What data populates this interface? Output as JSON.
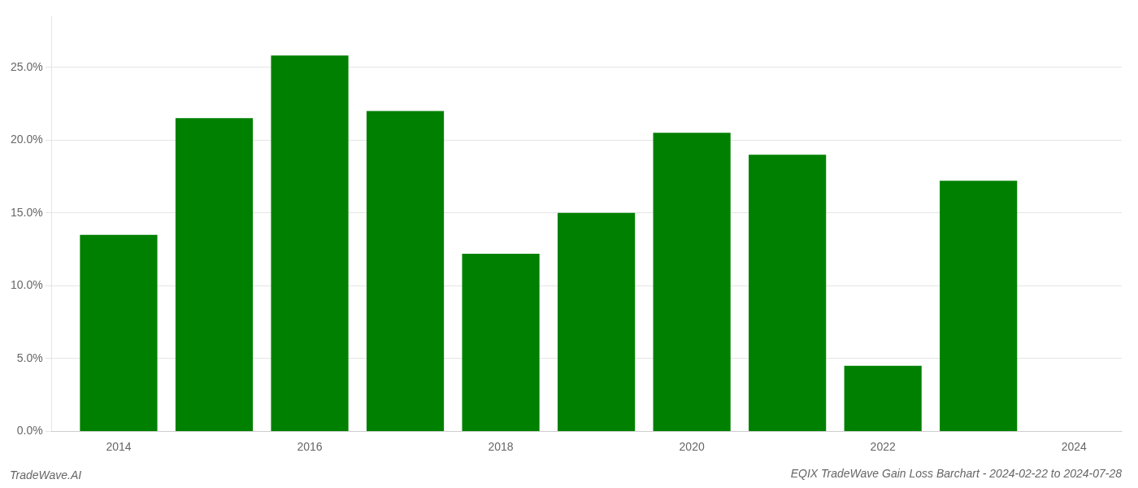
{
  "chart_data": {
    "type": "bar",
    "title": "EQIX TradeWave Gain Loss Barchart - 2024-02-22 to 2024-07-28",
    "annotations": [
      "TradeWave.AI"
    ],
    "x": [
      2014,
      2015,
      2016,
      2017,
      2018,
      2019,
      2020,
      2021,
      2022,
      2023
    ],
    "values": [
      0.135,
      0.215,
      0.258,
      0.22,
      0.122,
      0.15,
      0.205,
      0.19,
      0.045,
      0.172
    ],
    "color": "#008000",
    "xlim": [
      2013.3,
      2024.5
    ],
    "xticks": [
      2014,
      2016,
      2018,
      2020,
      2022,
      2024
    ],
    "ylim": [
      0,
      0.285
    ],
    "yticks": [
      {
        "value": 0.0,
        "label": "0.0%"
      },
      {
        "value": 0.05,
        "label": "5.0%"
      },
      {
        "value": 0.1,
        "label": "10.0%"
      },
      {
        "value": 0.15,
        "label": "15.0%"
      },
      {
        "value": 0.2,
        "label": "20.0%"
      },
      {
        "value": 0.25,
        "label": "25.0%"
      }
    ],
    "grid": true
  }
}
